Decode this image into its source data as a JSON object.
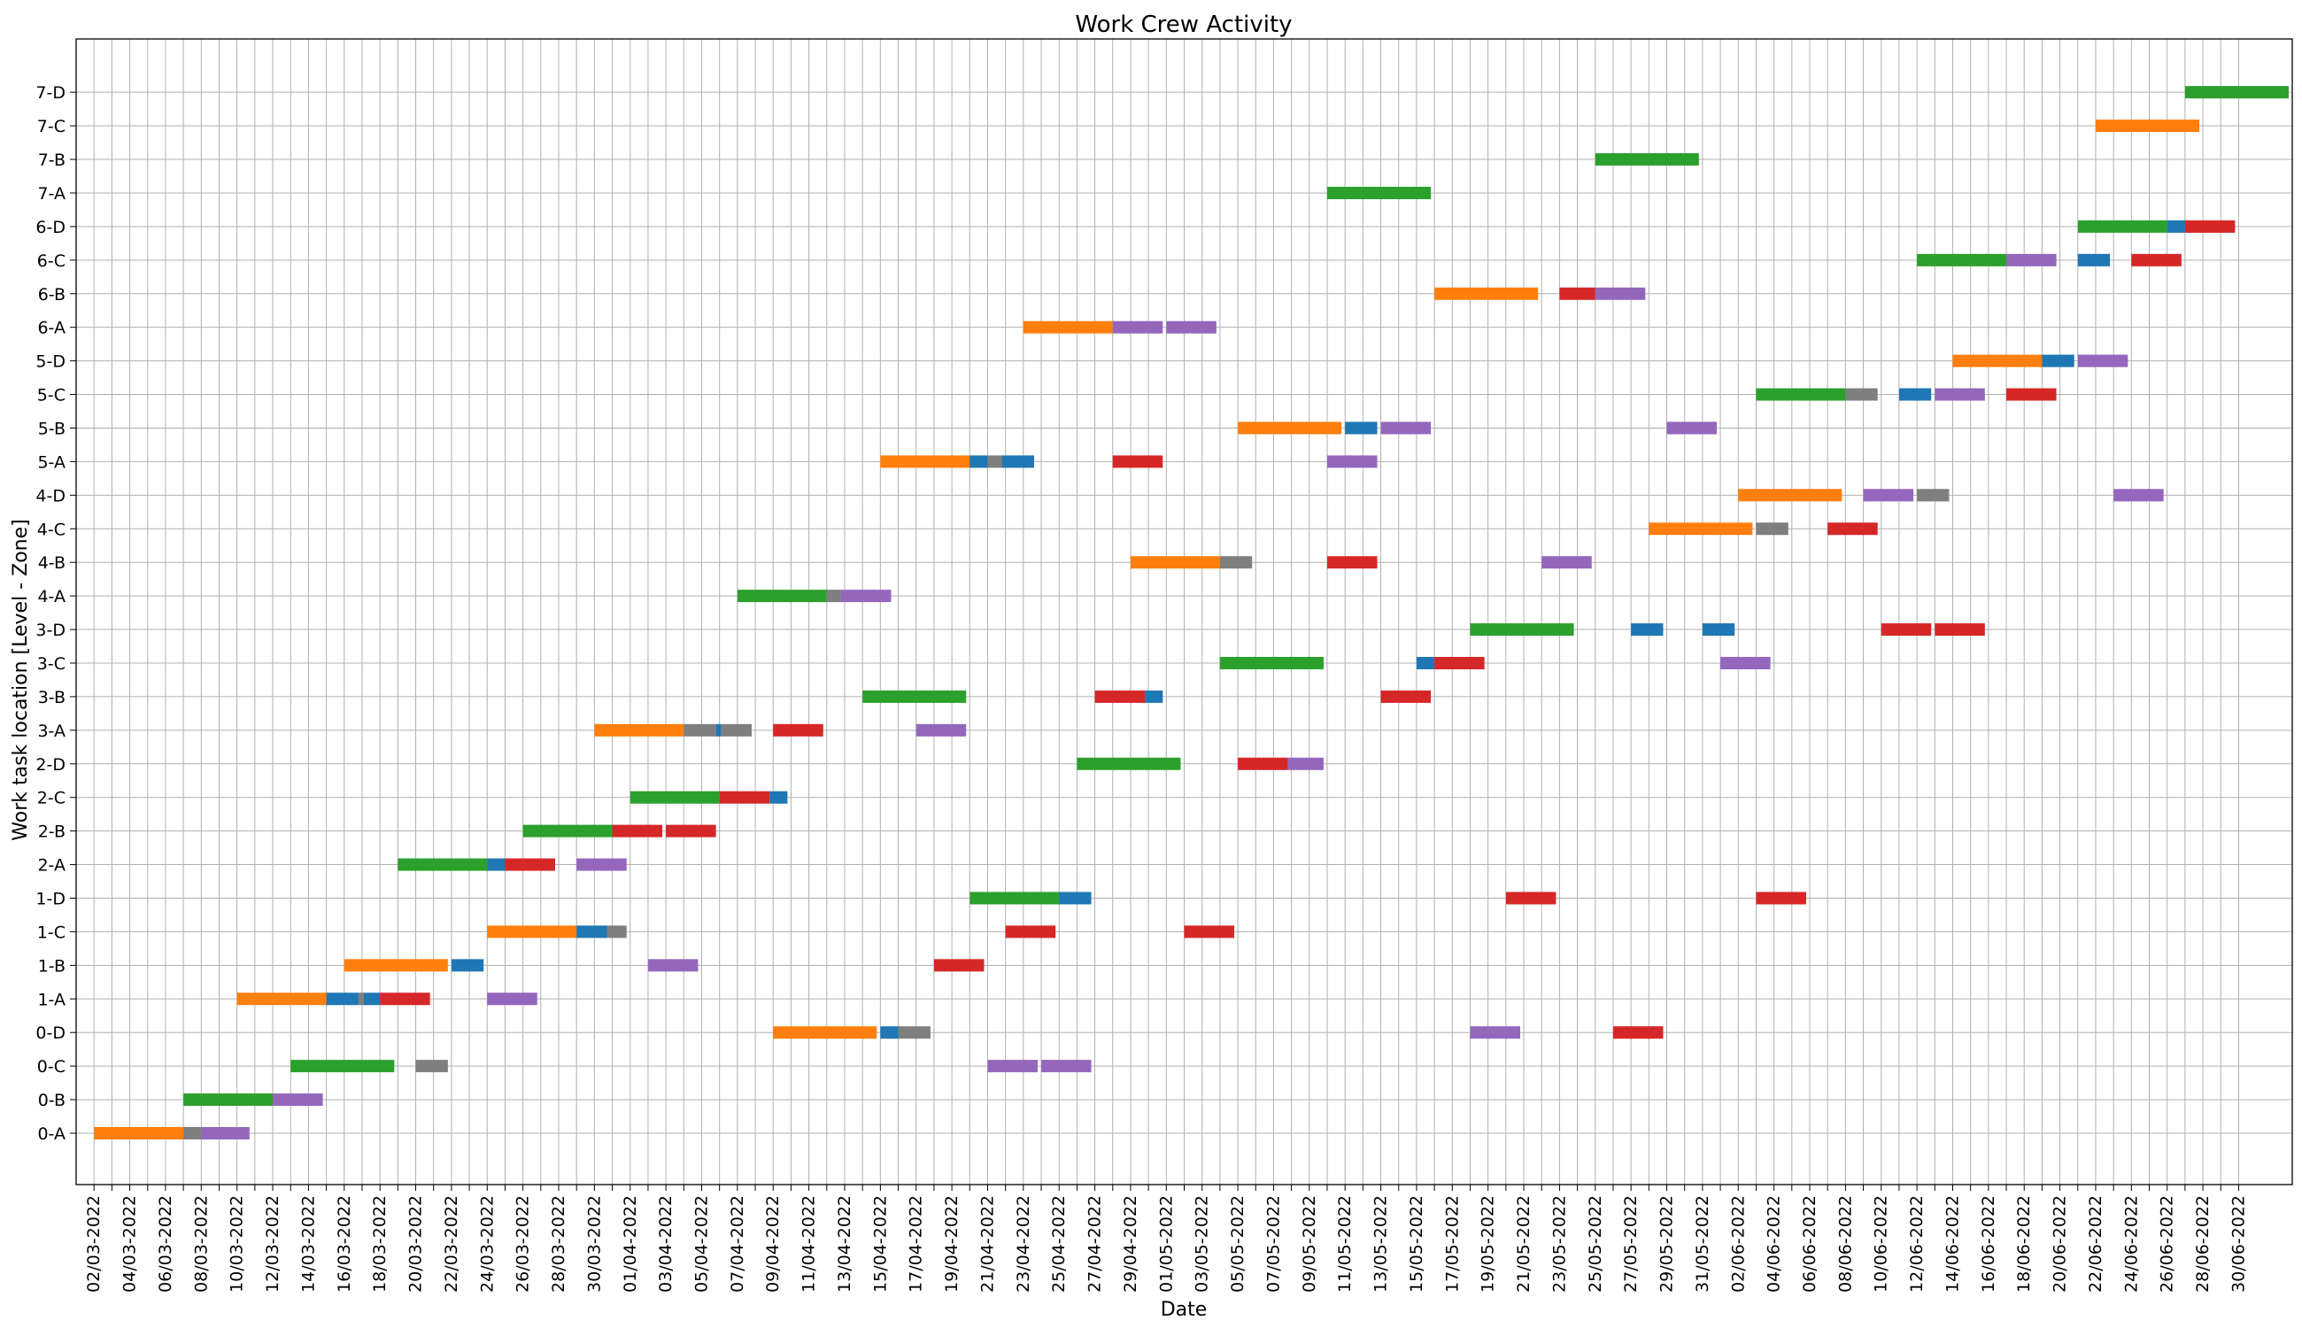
{
  "chart_data": {
    "type": "gantt",
    "title": "Work Crew Activity",
    "xlabel": "Date",
    "ylabel": "Work task location [Level - Zone]",
    "grid": true,
    "xlim": [
      "2022-03-01",
      "2022-07-03"
    ],
    "x_tick_labels": [
      "02/03-2022",
      "04/03-2022",
      "06/03-2022",
      "08/03-2022",
      "10/03-2022",
      "12/03-2022",
      "14/03-2022",
      "16/03-2022",
      "18/03-2022",
      "20/03-2022",
      "22/03-2022",
      "24/03-2022",
      "26/03-2022",
      "28/03-2022",
      "30/03-2022",
      "01/04-2022",
      "03/04-2022",
      "05/04-2022",
      "07/04-2022",
      "09/04-2022",
      "11/04-2022",
      "13/04-2022",
      "15/04-2022",
      "17/04-2022",
      "19/04-2022",
      "21/04-2022",
      "23/04-2022",
      "25/04-2022",
      "27/04-2022",
      "29/04-2022",
      "01/05-2022",
      "03/05-2022",
      "05/05-2022",
      "07/05-2022",
      "09/05-2022",
      "11/05-2022",
      "13/05-2022",
      "15/05-2022",
      "17/05-2022",
      "19/05-2022",
      "21/05-2022",
      "23/05-2022",
      "25/05-2022",
      "27/05-2022",
      "29/05-2022",
      "31/05-2022",
      "02/06-2022",
      "04/06-2022",
      "06/06-2022",
      "08/06-2022",
      "10/06-2022",
      "12/06-2022",
      "14/06-2022",
      "16/06-2022",
      "18/06-2022",
      "20/06-2022",
      "22/06-2022",
      "24/06-2022",
      "26/06-2022",
      "28/06-2022",
      "30/06-2022"
    ],
    "categories": [
      "0-A",
      "0-B",
      "0-C",
      "0-D",
      "1-A",
      "1-B",
      "1-C",
      "1-D",
      "2-A",
      "2-B",
      "2-C",
      "2-D",
      "3-A",
      "3-B",
      "3-C",
      "3-D",
      "4-A",
      "4-B",
      "4-C",
      "4-D",
      "5-A",
      "5-B",
      "5-C",
      "5-D",
      "6-A",
      "6-B",
      "6-C",
      "6-D",
      "7-A",
      "7-B",
      "7-C",
      "7-D"
    ],
    "colors": {
      "orange": "#ff7f0e",
      "gray": "#7f7f7f",
      "purple": "#9467bd",
      "green": "#2ca02c",
      "blue": "#1f77b4",
      "red": "#d62728"
    },
    "tasks": [
      {
        "location": "0-A",
        "color": "orange",
        "start": "2022-03-02",
        "end": "2022-03-07"
      },
      {
        "location": "0-A",
        "color": "gray",
        "start": "2022-03-07",
        "end": "2022-03-08"
      },
      {
        "location": "0-A",
        "color": "purple",
        "start": "2022-03-08",
        "end": "2022-03-10.7"
      },
      {
        "location": "0-B",
        "color": "green",
        "start": "2022-03-07",
        "end": "2022-03-12"
      },
      {
        "location": "0-B",
        "color": "purple",
        "start": "2022-03-12",
        "end": "2022-03-14.8"
      },
      {
        "location": "0-C",
        "color": "green",
        "start": "2022-03-13",
        "end": "2022-03-18.8"
      },
      {
        "location": "0-C",
        "color": "gray",
        "start": "2022-03-20",
        "end": "2022-03-21.8"
      },
      {
        "location": "0-C",
        "color": "purple",
        "start": "2022-04-21",
        "end": "2022-04-23.8"
      },
      {
        "location": "0-C",
        "color": "purple",
        "start": "2022-04-24",
        "end": "2022-04-26.8"
      },
      {
        "location": "0-D",
        "color": "orange",
        "start": "2022-04-09",
        "end": "2022-04-14.8"
      },
      {
        "location": "0-D",
        "color": "blue",
        "start": "2022-04-15",
        "end": "2022-04-16"
      },
      {
        "location": "0-D",
        "color": "gray",
        "start": "2022-04-16",
        "end": "2022-04-17.8"
      },
      {
        "location": "0-D",
        "color": "purple",
        "start": "2022-05-18",
        "end": "2022-05-20.8"
      },
      {
        "location": "0-D",
        "color": "red",
        "start": "2022-05-26",
        "end": "2022-05-28.8"
      },
      {
        "location": "1-A",
        "color": "orange",
        "start": "2022-03-10",
        "end": "2022-03-15"
      },
      {
        "location": "1-A",
        "color": "blue",
        "start": "2022-03-15",
        "end": "2022-03-16.8"
      },
      {
        "location": "1-A",
        "color": "gray",
        "start": "2022-03-16.8",
        "end": "2022-03-17.1"
      },
      {
        "location": "1-A",
        "color": "blue",
        "start": "2022-03-17.1",
        "end": "2022-03-18"
      },
      {
        "location": "1-A",
        "color": "red",
        "start": "2022-03-18",
        "end": "2022-03-20.8"
      },
      {
        "location": "1-A",
        "color": "purple",
        "start": "2022-03-24",
        "end": "2022-03-26.8"
      },
      {
        "location": "1-B",
        "color": "orange",
        "start": "2022-03-16",
        "end": "2022-03-21.8"
      },
      {
        "location": "1-B",
        "color": "blue",
        "start": "2022-03-22",
        "end": "2022-03-23.8"
      },
      {
        "location": "1-B",
        "color": "purple",
        "start": "2022-04-02",
        "end": "2022-04-04.8"
      },
      {
        "location": "1-B",
        "color": "red",
        "start": "2022-04-18",
        "end": "2022-04-20.8"
      },
      {
        "location": "1-C",
        "color": "orange",
        "start": "2022-03-24",
        "end": "2022-03-29"
      },
      {
        "location": "1-C",
        "color": "blue",
        "start": "2022-03-29",
        "end": "2022-03-30.7"
      },
      {
        "location": "1-C",
        "color": "gray",
        "start": "2022-03-30.7",
        "end": "2022-03-31.8"
      },
      {
        "location": "1-C",
        "color": "red",
        "start": "2022-04-22",
        "end": "2022-04-24.8"
      },
      {
        "location": "1-C",
        "color": "red",
        "start": "2022-05-02",
        "end": "2022-05-04.8"
      },
      {
        "location": "1-D",
        "color": "green",
        "start": "2022-04-20",
        "end": "2022-04-25"
      },
      {
        "location": "1-D",
        "color": "blue",
        "start": "2022-04-25",
        "end": "2022-04-26.8"
      },
      {
        "location": "1-D",
        "color": "red",
        "start": "2022-05-20",
        "end": "2022-05-22.8"
      },
      {
        "location": "1-D",
        "color": "red",
        "start": "2022-06-03",
        "end": "2022-06-05.8"
      },
      {
        "location": "2-A",
        "color": "green",
        "start": "2022-03-19",
        "end": "2022-03-24"
      },
      {
        "location": "2-A",
        "color": "blue",
        "start": "2022-03-24",
        "end": "2022-03-25"
      },
      {
        "location": "2-A",
        "color": "red",
        "start": "2022-03-25",
        "end": "2022-03-27.8"
      },
      {
        "location": "2-A",
        "color": "purple",
        "start": "2022-03-29",
        "end": "2022-03-31.8"
      },
      {
        "location": "2-B",
        "color": "green",
        "start": "2022-03-26",
        "end": "2022-03-31"
      },
      {
        "location": "2-B",
        "color": "red",
        "start": "2022-03-31",
        "end": "2022-04-02.8"
      },
      {
        "location": "2-B",
        "color": "red",
        "start": "2022-04-03",
        "end": "2022-04-05.8"
      },
      {
        "location": "2-C",
        "color": "green",
        "start": "2022-04-01",
        "end": "2022-04-06"
      },
      {
        "location": "2-C",
        "color": "red",
        "start": "2022-04-06",
        "end": "2022-04-08.8"
      },
      {
        "location": "2-C",
        "color": "blue",
        "start": "2022-04-08.8",
        "end": "2022-04-09.8"
      },
      {
        "location": "2-D",
        "color": "green",
        "start": "2022-04-26",
        "end": "2022-05-01.8"
      },
      {
        "location": "2-D",
        "color": "red",
        "start": "2022-05-05",
        "end": "2022-05-07.8"
      },
      {
        "location": "2-D",
        "color": "purple",
        "start": "2022-05-07.8",
        "end": "2022-05-09.8"
      },
      {
        "location": "3-A",
        "color": "orange",
        "start": "2022-03-30",
        "end": "2022-04-04"
      },
      {
        "location": "3-A",
        "color": "gray",
        "start": "2022-04-04",
        "end": "2022-04-05.8"
      },
      {
        "location": "3-A",
        "color": "blue",
        "start": "2022-04-05.8",
        "end": "2022-04-06.1"
      },
      {
        "location": "3-A",
        "color": "gray",
        "start": "2022-04-06.1",
        "end": "2022-04-07.8"
      },
      {
        "location": "3-A",
        "color": "red",
        "start": "2022-04-09",
        "end": "2022-04-11.8"
      },
      {
        "location": "3-A",
        "color": "purple",
        "start": "2022-04-17",
        "end": "2022-04-19.8"
      },
      {
        "location": "3-B",
        "color": "green",
        "start": "2022-04-14",
        "end": "2022-04-19.8"
      },
      {
        "location": "3-B",
        "color": "red",
        "start": "2022-04-27",
        "end": "2022-04-29.8"
      },
      {
        "location": "3-B",
        "color": "blue",
        "start": "2022-04-29.8",
        "end": "2022-04-30.8"
      },
      {
        "location": "3-B",
        "color": "red",
        "start": "2022-05-13",
        "end": "2022-05-15.8"
      },
      {
        "location": "3-C",
        "color": "green",
        "start": "2022-05-04",
        "end": "2022-05-09.8"
      },
      {
        "location": "3-C",
        "color": "blue",
        "start": "2022-05-15",
        "end": "2022-05-16"
      },
      {
        "location": "3-C",
        "color": "red",
        "start": "2022-05-16",
        "end": "2022-05-18.8"
      },
      {
        "location": "3-C",
        "color": "purple",
        "start": "2022-06-01",
        "end": "2022-06-03.8"
      },
      {
        "location": "3-D",
        "color": "green",
        "start": "2022-05-18",
        "end": "2022-05-23.8"
      },
      {
        "location": "3-D",
        "color": "blue",
        "start": "2022-05-27",
        "end": "2022-05-28.8"
      },
      {
        "location": "3-D",
        "color": "blue",
        "start": "2022-05-31",
        "end": "2022-06-01.8"
      },
      {
        "location": "3-D",
        "color": "red",
        "start": "2022-06-10",
        "end": "2022-06-12.8"
      },
      {
        "location": "3-D",
        "color": "red",
        "start": "2022-06-13",
        "end": "2022-06-15.8"
      },
      {
        "location": "4-A",
        "color": "green",
        "start": "2022-04-07",
        "end": "2022-04-12"
      },
      {
        "location": "4-A",
        "color": "gray",
        "start": "2022-04-12",
        "end": "2022-04-12.8"
      },
      {
        "location": "4-A",
        "color": "purple",
        "start": "2022-04-12.8",
        "end": "2022-04-15.6"
      },
      {
        "location": "4-B",
        "color": "orange",
        "start": "2022-04-29",
        "end": "2022-05-04"
      },
      {
        "location": "4-B",
        "color": "gray",
        "start": "2022-05-04",
        "end": "2022-05-05.8"
      },
      {
        "location": "4-B",
        "color": "red",
        "start": "2022-05-10",
        "end": "2022-05-12.8"
      },
      {
        "location": "4-B",
        "color": "purple",
        "start": "2022-05-22",
        "end": "2022-05-24.8"
      },
      {
        "location": "4-C",
        "color": "orange",
        "start": "2022-05-28",
        "end": "2022-06-02.8"
      },
      {
        "location": "4-C",
        "color": "gray",
        "start": "2022-06-03",
        "end": "2022-06-04.8"
      },
      {
        "location": "4-C",
        "color": "red",
        "start": "2022-06-07",
        "end": "2022-06-09.8"
      },
      {
        "location": "4-D",
        "color": "orange",
        "start": "2022-06-02",
        "end": "2022-06-07.8"
      },
      {
        "location": "4-D",
        "color": "purple",
        "start": "2022-06-09",
        "end": "2022-06-11.8"
      },
      {
        "location": "4-D",
        "color": "gray",
        "start": "2022-06-12",
        "end": "2022-06-13.8"
      },
      {
        "location": "4-D",
        "color": "purple",
        "start": "2022-06-23",
        "end": "2022-06-25.8"
      },
      {
        "location": "5-A",
        "color": "orange",
        "start": "2022-04-15",
        "end": "2022-04-20"
      },
      {
        "location": "5-A",
        "color": "blue",
        "start": "2022-04-20",
        "end": "2022-04-21"
      },
      {
        "location": "5-A",
        "color": "gray",
        "start": "2022-04-21",
        "end": "2022-04-21.8"
      },
      {
        "location": "5-A",
        "color": "blue",
        "start": "2022-04-21.8",
        "end": "2022-04-23.6"
      },
      {
        "location": "5-A",
        "color": "red",
        "start": "2022-04-28",
        "end": "2022-04-30.8"
      },
      {
        "location": "5-A",
        "color": "purple",
        "start": "2022-05-10",
        "end": "2022-05-12.8"
      },
      {
        "location": "5-B",
        "color": "orange",
        "start": "2022-05-05",
        "end": "2022-05-10.8"
      },
      {
        "location": "5-B",
        "color": "blue",
        "start": "2022-05-11",
        "end": "2022-05-12.8"
      },
      {
        "location": "5-B",
        "color": "purple",
        "start": "2022-05-13",
        "end": "2022-05-15.8"
      },
      {
        "location": "5-B",
        "color": "purple",
        "start": "2022-05-29",
        "end": "2022-05-31.8"
      },
      {
        "location": "5-C",
        "color": "green",
        "start": "2022-06-03",
        "end": "2022-06-08"
      },
      {
        "location": "5-C",
        "color": "gray",
        "start": "2022-06-08",
        "end": "2022-06-09.8"
      },
      {
        "location": "5-C",
        "color": "blue",
        "start": "2022-06-11",
        "end": "2022-06-12.8"
      },
      {
        "location": "5-C",
        "color": "purple",
        "start": "2022-06-13",
        "end": "2022-06-15.8"
      },
      {
        "location": "5-C",
        "color": "red",
        "start": "2022-06-17",
        "end": "2022-06-19.8"
      },
      {
        "location": "5-D",
        "color": "orange",
        "start": "2022-06-14",
        "end": "2022-06-19"
      },
      {
        "location": "5-D",
        "color": "blue",
        "start": "2022-06-19",
        "end": "2022-06-20.8"
      },
      {
        "location": "5-D",
        "color": "purple",
        "start": "2022-06-21",
        "end": "2022-06-23.8"
      },
      {
        "location": "6-A",
        "color": "orange",
        "start": "2022-04-23",
        "end": "2022-04-28"
      },
      {
        "location": "6-A",
        "color": "purple",
        "start": "2022-04-28",
        "end": "2022-04-30.8"
      },
      {
        "location": "6-A",
        "color": "purple",
        "start": "2022-05-01",
        "end": "2022-05-03.8"
      },
      {
        "location": "6-B",
        "color": "orange",
        "start": "2022-05-16",
        "end": "2022-05-21.8"
      },
      {
        "location": "6-B",
        "color": "red",
        "start": "2022-05-23",
        "end": "2022-05-25"
      },
      {
        "location": "6-B",
        "color": "purple",
        "start": "2022-05-25",
        "end": "2022-05-27.8"
      },
      {
        "location": "6-C",
        "color": "green",
        "start": "2022-06-12",
        "end": "2022-06-17"
      },
      {
        "location": "6-C",
        "color": "purple",
        "start": "2022-06-17",
        "end": "2022-06-19.8"
      },
      {
        "location": "6-C",
        "color": "blue",
        "start": "2022-06-21",
        "end": "2022-06-22.8"
      },
      {
        "location": "6-C",
        "color": "red",
        "start": "2022-06-24",
        "end": "2022-06-26.8"
      },
      {
        "location": "6-D",
        "color": "green",
        "start": "2022-06-21",
        "end": "2022-06-26"
      },
      {
        "location": "6-D",
        "color": "blue",
        "start": "2022-06-26",
        "end": "2022-06-27"
      },
      {
        "location": "6-D",
        "color": "red",
        "start": "2022-06-27",
        "end": "2022-06-29.8"
      },
      {
        "location": "7-A",
        "color": "green",
        "start": "2022-05-10",
        "end": "2022-05-15.8"
      },
      {
        "location": "7-B",
        "color": "green",
        "start": "2022-05-25",
        "end": "2022-05-30.8"
      },
      {
        "location": "7-C",
        "color": "green",
        "start": "2022-06-22",
        "end": "2022-06-22"
      },
      {
        "location": "7-C",
        "color": "orange",
        "start": "2022-06-22",
        "end": "2022-06-27.8"
      },
      {
        "location": "7-D",
        "color": "green",
        "start": "2022-06-27",
        "end": "2022-07-02.8"
      }
    ]
  }
}
